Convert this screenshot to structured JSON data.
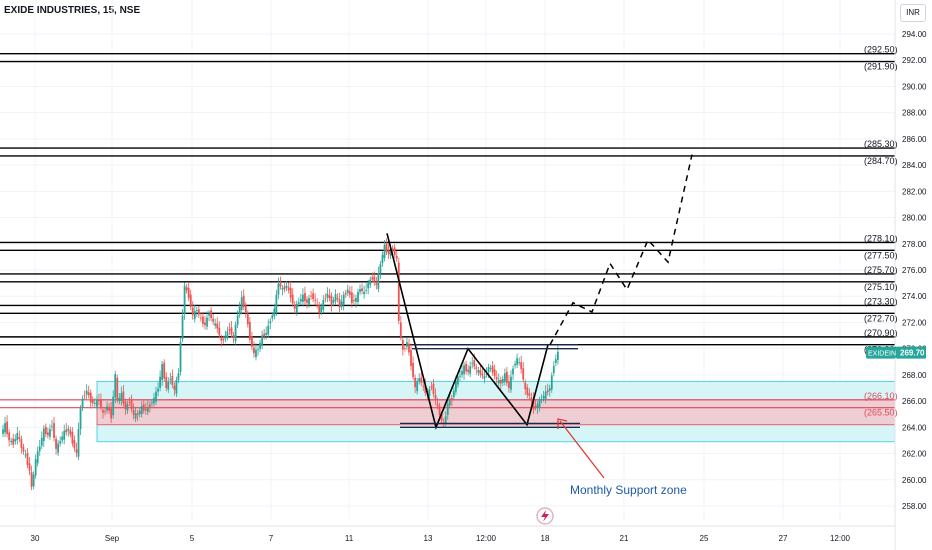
{
  "title": "EXIDE INDUSTRIES, 15, NSE",
  "currency": "INR",
  "chart_data": {
    "type": "candlestick",
    "symbol": "EXIDEIND",
    "last_price": "269.70",
    "ylim": [
      256,
      295
    ],
    "y_ticks": [
      "294.00",
      "292.00",
      "290.00",
      "288.00",
      "286.00",
      "284.00",
      "282.00",
      "280.00",
      "278.00",
      "276.00",
      "274.00",
      "272.00",
      "270.00",
      "268.00",
      "266.00",
      "264.00",
      "262.00",
      "260.00",
      "258.00"
    ],
    "x_ticks": [
      "30",
      "Sep",
      "5",
      "7",
      "11",
      "13",
      "12:00",
      "18",
      "21",
      "25",
      "27",
      "12:00"
    ],
    "levels": [
      {
        "price": 292.5,
        "label": "(292.50)"
      },
      {
        "price": 291.9,
        "label": "(291.90)"
      },
      {
        "price": 285.3,
        "label": "(285.30)"
      },
      {
        "price": 284.7,
        "label": "(284.70)"
      },
      {
        "price": 278.1,
        "label": "(278.10)"
      },
      {
        "price": 277.5,
        "label": "(277.50)"
      },
      {
        "price": 275.7,
        "label": "(275.70)"
      },
      {
        "price": 275.1,
        "label": "(275.10)"
      },
      {
        "price": 273.3,
        "label": "(273.30)"
      },
      {
        "price": 272.7,
        "label": "(272.70)"
      },
      {
        "price": 270.9,
        "label": "(270.90)"
      },
      {
        "price": 270.3,
        "label": "(270.30)"
      }
    ],
    "red_levels": [
      {
        "price": 266.1,
        "label": "(266.10)"
      },
      {
        "price": 265.5,
        "label": "(265.50)"
      }
    ],
    "support_zone": {
      "top": 267.5,
      "bottom": 262.9
    },
    "red_zone": {
      "top": 266.1,
      "bottom": 264.2
    },
    "annotation": "Monthly Support zone",
    "price_path": [
      [
        0,
        263.5
      ],
      [
        4,
        264.2
      ],
      [
        8,
        263.0
      ],
      [
        12,
        262.8
      ],
      [
        16,
        263.5
      ],
      [
        20,
        262.5
      ],
      [
        24,
        261.8
      ],
      [
        28,
        260.7
      ],
      [
        30,
        259.4
      ],
      [
        34,
        261.5
      ],
      [
        38,
        262.6
      ],
      [
        42,
        263.8
      ],
      [
        46,
        263.4
      ],
      [
        50,
        264.2
      ],
      [
        54,
        262.3
      ],
      [
        58,
        263.0
      ],
      [
        62,
        263.6
      ],
      [
        66,
        263.9
      ],
      [
        70,
        262.9
      ],
      [
        74,
        262.0
      ],
      [
        78,
        265.5
      ],
      [
        80,
        266.2
      ],
      [
        84,
        266.8
      ],
      [
        88,
        266.0
      ],
      [
        92,
        265.8
      ],
      [
        96,
        266.1
      ],
      [
        100,
        265.0
      ],
      [
        104,
        265.6
      ],
      [
        108,
        264.8
      ],
      [
        112,
        268.0
      ],
      [
        114,
        266.0
      ],
      [
        118,
        266.5
      ],
      [
        122,
        265.4
      ],
      [
        126,
        266.0
      ],
      [
        130,
        264.9
      ],
      [
        134,
        265.0
      ],
      [
        138,
        265.5
      ],
      [
        142,
        265.3
      ],
      [
        146,
        265.7
      ],
      [
        150,
        266.2
      ],
      [
        154,
        267.0
      ],
      [
        158,
        268.7
      ],
      [
        162,
        267.0
      ],
      [
        166,
        267.8
      ],
      [
        170,
        266.8
      ],
      [
        174,
        268.2
      ],
      [
        176,
        270.5
      ],
      [
        180,
        274.8
      ],
      [
        184,
        274.0
      ],
      [
        188,
        272.5
      ],
      [
        192,
        273.0
      ],
      [
        196,
        272.2
      ],
      [
        200,
        271.8
      ],
      [
        204,
        272.8
      ],
      [
        208,
        272.0
      ],
      [
        212,
        271.6
      ],
      [
        216,
        270.5
      ],
      [
        220,
        271.0
      ],
      [
        224,
        271.5
      ],
      [
        228,
        270.8
      ],
      [
        232,
        272.6
      ],
      [
        236,
        273.8
      ],
      [
        240,
        272.8
      ],
      [
        244,
        270.8
      ],
      [
        248,
        269.6
      ],
      [
        252,
        270.0
      ],
      [
        256,
        270.9
      ],
      [
        260,
        271.2
      ],
      [
        264,
        272.2
      ],
      [
        268,
        273.0
      ],
      [
        272,
        275.0
      ],
      [
        276,
        274.5
      ],
      [
        280,
        274.8
      ],
      [
        284,
        274.0
      ],
      [
        288,
        273.0
      ],
      [
        292,
        273.6
      ],
      [
        296,
        274.0
      ],
      [
        300,
        273.5
      ],
      [
        304,
        274.1
      ],
      [
        308,
        273.6
      ],
      [
        312,
        272.8
      ],
      [
        316,
        273.6
      ],
      [
        320,
        274.2
      ],
      [
        324,
        273.4
      ],
      [
        328,
        274.1
      ],
      [
        332,
        273.2
      ],
      [
        336,
        274.0
      ],
      [
        340,
        274.5
      ],
      [
        344,
        273.6
      ],
      [
        348,
        273.8
      ],
      [
        352,
        274.6
      ],
      [
        356,
        274.2
      ],
      [
        360,
        275.0
      ],
      [
        364,
        275.4
      ],
      [
        368,
        274.8
      ],
      [
        372,
        276.5
      ],
      [
        376,
        277.8
      ],
      [
        380,
        277.2
      ],
      [
        384,
        277.6
      ],
      [
        388,
        276.8
      ],
      [
        390,
        272.0
      ],
      [
        394,
        269.8
      ],
      [
        398,
        270.5
      ],
      [
        402,
        268.8
      ],
      [
        406,
        267.0
      ],
      [
        410,
        267.8
      ],
      [
        414,
        267.0
      ],
      [
        418,
        266.5
      ],
      [
        422,
        267.2
      ],
      [
        426,
        266.0
      ],
      [
        430,
        265.0
      ],
      [
        434,
        264.1
      ],
      [
        438,
        265.8
      ],
      [
        442,
        266.2
      ],
      [
        446,
        267.5
      ],
      [
        450,
        268.0
      ],
      [
        454,
        268.6
      ],
      [
        458,
        268.2
      ],
      [
        462,
        269.0
      ],
      [
        466,
        268.4
      ],
      [
        470,
        268.1
      ],
      [
        474,
        267.8
      ],
      [
        478,
        268.6
      ],
      [
        482,
        268.3
      ],
      [
        486,
        267.6
      ],
      [
        490,
        267.4
      ],
      [
        494,
        268.0
      ],
      [
        498,
        267.0
      ],
      [
        502,
        268.6
      ],
      [
        506,
        269.2
      ],
      [
        510,
        268.5
      ],
      [
        514,
        266.8
      ],
      [
        518,
        266.4
      ],
      [
        522,
        265.5
      ],
      [
        526,
        265.7
      ],
      [
        530,
        266.2
      ],
      [
        534,
        266.6
      ],
      [
        538,
        267.0
      ],
      [
        542,
        268.8
      ],
      [
        546,
        269.7
      ]
    ],
    "pattern_lines": [
      [
        [
          387,
          278.8
        ],
        [
          436,
          264.0
        ],
        [
          468,
          270.0
        ],
        [
          527,
          264.2
        ],
        [
          548,
          270.3
        ]
      ]
    ],
    "neckline_lines": [
      [
        [
          412,
          270.3
        ],
        [
          578,
          270.3
        ]
      ],
      [
        [
          412,
          270.0
        ],
        [
          578,
          270.0
        ]
      ],
      [
        [
          400,
          264.0
        ],
        [
          580,
          264.0
        ]
      ],
      [
        [
          400,
          264.3
        ],
        [
          580,
          264.3
        ]
      ]
    ],
    "projection_path": [
      [
        550,
        270.3
      ],
      [
        573,
        273.5
      ],
      [
        592,
        272.8
      ],
      [
        610,
        276.5
      ],
      [
        627,
        274.5
      ],
      [
        648,
        278.3
      ],
      [
        668,
        276.6
      ],
      [
        692,
        284.8
      ]
    ],
    "grid": true,
    "legend": "none"
  }
}
